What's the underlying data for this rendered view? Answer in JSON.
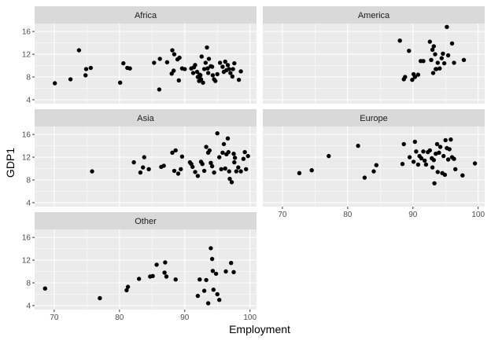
{
  "chart_data": {
    "type": "scatter",
    "layout": "facet_wrap",
    "xlabel": "Employment",
    "ylabel": "GDP1",
    "xlim": [
      67,
      101
    ],
    "ylim": [
      3.3,
      17.4
    ],
    "x_ticks": [
      70,
      80,
      90,
      100
    ],
    "y_ticks": [
      4,
      8,
      12,
      16
    ],
    "grid": true,
    "legend": "none",
    "colors": {
      "panel_bg": "#EBEBEB",
      "strip_bg": "#D9D9D9",
      "grid_major": "#FFFFFF",
      "point": "#000000"
    },
    "panels": [
      {
        "title": "Africa",
        "points": [
          [
            70.1,
            6.9
          ],
          [
            72.5,
            7.6
          ],
          [
            73.8,
            12.7
          ],
          [
            74.8,
            8.3
          ],
          [
            74.9,
            9.4
          ],
          [
            75.6,
            9.6
          ],
          [
            80.1,
            7.0
          ],
          [
            80.6,
            10.4
          ],
          [
            81.2,
            9.6
          ],
          [
            81.6,
            9.5
          ],
          [
            85.3,
            10.5
          ],
          [
            86.1,
            5.8
          ],
          [
            86.2,
            11.2
          ],
          [
            87.3,
            10.6
          ],
          [
            88.0,
            8.6
          ],
          [
            88.1,
            12.7
          ],
          [
            88.3,
            9.1
          ],
          [
            88.4,
            12.0
          ],
          [
            88.9,
            11.1
          ],
          [
            89.2,
            11.4
          ],
          [
            89.1,
            7.4
          ],
          [
            89.6,
            9.5
          ],
          [
            90.0,
            9.4
          ],
          [
            91.0,
            9.5
          ],
          [
            91.3,
            8.7
          ],
          [
            91.4,
            9.7
          ],
          [
            91.6,
            10.1
          ],
          [
            91.9,
            8.9
          ],
          [
            92.0,
            8.0
          ],
          [
            92.2,
            7.3
          ],
          [
            92.3,
            8.4
          ],
          [
            92.4,
            8.3
          ],
          [
            92.5,
            7.6
          ],
          [
            92.6,
            11.6
          ],
          [
            92.8,
            7.0
          ],
          [
            93.0,
            9.4
          ],
          [
            93.2,
            10.5
          ],
          [
            93.4,
            13.2
          ],
          [
            93.5,
            9.5
          ],
          [
            93.6,
            8.7
          ],
          [
            93.7,
            11.2
          ],
          [
            94.0,
            9.9
          ],
          [
            94.2,
            9.8
          ],
          [
            94.3,
            8.3
          ],
          [
            94.5,
            7.6
          ],
          [
            94.7,
            7.3
          ],
          [
            95.0,
            8.5
          ],
          [
            95.4,
            10.5
          ],
          [
            95.8,
            9.8
          ],
          [
            96.0,
            8.9
          ],
          [
            96.2,
            10.7
          ],
          [
            96.4,
            9.2
          ],
          [
            96.6,
            10.1
          ],
          [
            96.8,
            9.4
          ],
          [
            97.0,
            8.7
          ],
          [
            97.3,
            8.1
          ],
          [
            97.6,
            10.4
          ],
          [
            98.3,
            7.5
          ],
          [
            98.6,
            9.0
          ],
          [
            97.4,
            9.4
          ]
        ]
      },
      {
        "title": "America",
        "points": [
          [
            88.0,
            14.4
          ],
          [
            88.6,
            7.6
          ],
          [
            88.8,
            8.0
          ],
          [
            89.4,
            12.6
          ],
          [
            89.9,
            7.5
          ],
          [
            90.1,
            8.5
          ],
          [
            90.3,
            8.0
          ],
          [
            90.8,
            8.4
          ],
          [
            91.2,
            10.8
          ],
          [
            91.6,
            10.8
          ],
          [
            92.6,
            14.2
          ],
          [
            92.8,
            11.0
          ],
          [
            93.0,
            12.8
          ],
          [
            93.1,
            8.7
          ],
          [
            93.2,
            13.4
          ],
          [
            93.4,
            12.0
          ],
          [
            93.5,
            9.4
          ],
          [
            93.6,
            9.4
          ],
          [
            93.8,
            10.5
          ],
          [
            94.1,
            9.5
          ],
          [
            94.4,
            11.3
          ],
          [
            94.6,
            12.1
          ],
          [
            94.8,
            10.4
          ],
          [
            95.2,
            16.8
          ],
          [
            95.4,
            11.8
          ],
          [
            96.0,
            13.9
          ],
          [
            96.3,
            10.5
          ],
          [
            97.8,
            11.0
          ]
        ]
      },
      {
        "title": "Asia",
        "points": [
          [
            75.8,
            9.5
          ],
          [
            82.2,
            11.1
          ],
          [
            83.2,
            9.3
          ],
          [
            83.6,
            10.2
          ],
          [
            83.8,
            12.0
          ],
          [
            84.5,
            9.9
          ],
          [
            86.4,
            10.3
          ],
          [
            86.8,
            10.5
          ],
          [
            88.1,
            12.8
          ],
          [
            88.4,
            9.6
          ],
          [
            88.6,
            13.2
          ],
          [
            89.0,
            9.1
          ],
          [
            89.4,
            9.9
          ],
          [
            89.6,
            12.1
          ],
          [
            90.8,
            11.1
          ],
          [
            91.0,
            10.8
          ],
          [
            91.2,
            10.3
          ],
          [
            91.6,
            9.4
          ],
          [
            92.0,
            8.7
          ],
          [
            92.5,
            11.2
          ],
          [
            92.7,
            10.8
          ],
          [
            93.0,
            9.6
          ],
          [
            93.3,
            13.8
          ],
          [
            93.6,
            12.8
          ],
          [
            93.8,
            13.2
          ],
          [
            94.0,
            11.0
          ],
          [
            94.2,
            10.4
          ],
          [
            94.5,
            9.3
          ],
          [
            95.0,
            16.2
          ],
          [
            95.3,
            12.0
          ],
          [
            95.6,
            9.9
          ],
          [
            95.8,
            12.8
          ],
          [
            96.0,
            14.3
          ],
          [
            96.2,
            10.0
          ],
          [
            96.4,
            12.5
          ],
          [
            96.6,
            15.3
          ],
          [
            96.7,
            12.9
          ],
          [
            96.8,
            9.5
          ],
          [
            96.9,
            8.2
          ],
          [
            97.2,
            7.6
          ],
          [
            97.5,
            12.6
          ],
          [
            97.7,
            11.9
          ],
          [
            97.9,
            9.5
          ],
          [
            98.2,
            10.2
          ],
          [
            98.6,
            9.5
          ],
          [
            99.0,
            11.7
          ],
          [
            99.2,
            12.9
          ],
          [
            99.4,
            9.9
          ],
          [
            99.7,
            12.2
          ],
          [
            97.6,
            11.1
          ]
        ]
      },
      {
        "title": "Europe",
        "points": [
          [
            72.6,
            9.2
          ],
          [
            74.5,
            9.7
          ],
          [
            77.1,
            12.2
          ],
          [
            81.6,
            14.0
          ],
          [
            82.6,
            8.4
          ],
          [
            84.0,
            9.5
          ],
          [
            84.4,
            10.6
          ],
          [
            88.4,
            10.8
          ],
          [
            88.6,
            14.3
          ],
          [
            89.5,
            12.0
          ],
          [
            90.1,
            11.2
          ],
          [
            90.3,
            14.7
          ],
          [
            90.5,
            13.0
          ],
          [
            90.8,
            10.7
          ],
          [
            91.0,
            12.2
          ],
          [
            91.3,
            11.8
          ],
          [
            91.6,
            13.0
          ],
          [
            91.8,
            11.4
          ],
          [
            92.0,
            10.7
          ],
          [
            92.3,
            12.9
          ],
          [
            92.6,
            13.2
          ],
          [
            92.9,
            11.8
          ],
          [
            93.0,
            10.2
          ],
          [
            93.2,
            11.5
          ],
          [
            93.3,
            7.4
          ],
          [
            93.5,
            12.6
          ],
          [
            93.7,
            14.3
          ],
          [
            93.8,
            9.4
          ],
          [
            94.0,
            12.8
          ],
          [
            94.2,
            13.8
          ],
          [
            94.5,
            9.2
          ],
          [
            94.7,
            12.2
          ],
          [
            94.9,
            8.9
          ],
          [
            95.0,
            15.0
          ],
          [
            95.2,
            13.6
          ],
          [
            95.4,
            11.6
          ],
          [
            95.6,
            13.4
          ],
          [
            95.8,
            15.1
          ],
          [
            96.0,
            12.0
          ],
          [
            96.5,
            9.9
          ],
          [
            96.3,
            11.7
          ],
          [
            97.6,
            8.8
          ],
          [
            99.5,
            10.9
          ]
        ]
      },
      {
        "title": "Other",
        "points": [
          [
            68.6,
            7.0
          ],
          [
            77.0,
            5.3
          ],
          [
            81.1,
            6.7
          ],
          [
            81.3,
            7.3
          ],
          [
            83.0,
            8.7
          ],
          [
            84.7,
            9.1
          ],
          [
            85.1,
            9.2
          ],
          [
            85.7,
            11.2
          ],
          [
            86.9,
            9.8
          ],
          [
            87.0,
            11.6
          ],
          [
            87.2,
            9.1
          ],
          [
            88.6,
            8.6
          ],
          [
            92.0,
            5.7
          ],
          [
            92.3,
            8.6
          ],
          [
            93.0,
            6.6
          ],
          [
            93.3,
            8.5
          ],
          [
            93.6,
            4.4
          ],
          [
            94.0,
            14.1
          ],
          [
            94.2,
            12.2
          ],
          [
            94.3,
            10.1
          ],
          [
            94.8,
            9.6
          ],
          [
            95.0,
            6.0
          ],
          [
            95.3,
            5.0
          ],
          [
            96.3,
            10.0
          ],
          [
            97.1,
            11.5
          ],
          [
            97.5,
            9.9
          ],
          [
            94.4,
            6.8
          ]
        ]
      }
    ]
  }
}
